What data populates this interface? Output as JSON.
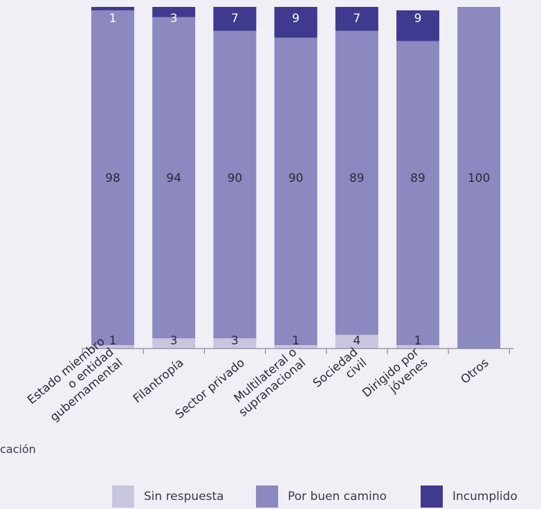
{
  "chart_data": {
    "type": "bar",
    "stacked": true,
    "percent_stacked": true,
    "categories": [
      "Estado miembro o entidad gubernamental",
      "Filantropía",
      "Sector privado",
      "Multilateral o supranacional",
      "Sociedad civil",
      "Dirigido por jóvenes",
      "Otros"
    ],
    "category_lines": [
      [
        "Estado miembro",
        "o entidad",
        "gubernamental"
      ],
      [
        "Filantropía"
      ],
      [
        "Sector privado"
      ],
      [
        "Multilateral o",
        "supranacional"
      ],
      [
        "Sociedad",
        "civil"
      ],
      [
        "Dirigido por",
        "jóvenes"
      ],
      [
        "Otros"
      ]
    ],
    "series": [
      {
        "name": "Sin respuesta",
        "color": "#c8c5de",
        "values": [
          1,
          3,
          3,
          1,
          4,
          1,
          0
        ],
        "labels": [
          "1",
          "3",
          "3",
          "1",
          "4",
          "1",
          ""
        ]
      },
      {
        "name": "Por buen camino",
        "color": "#8b89bf",
        "values": [
          98,
          94,
          90,
          90,
          89,
          89,
          100
        ],
        "labels": [
          "98",
          "94",
          "90",
          "90",
          "89",
          "89",
          "100"
        ]
      },
      {
        "name": "Incumplido",
        "color": "#3f3a8f",
        "values": [
          1,
          3,
          7,
          9,
          7,
          9,
          0
        ],
        "labels": [
          "1",
          "3",
          "7",
          "9",
          "7",
          "9",
          ""
        ]
      }
    ],
    "ylim": [
      0,
      100
    ],
    "grid": false,
    "legend_position": "bottom-right",
    "axis_caption": "cación"
  }
}
